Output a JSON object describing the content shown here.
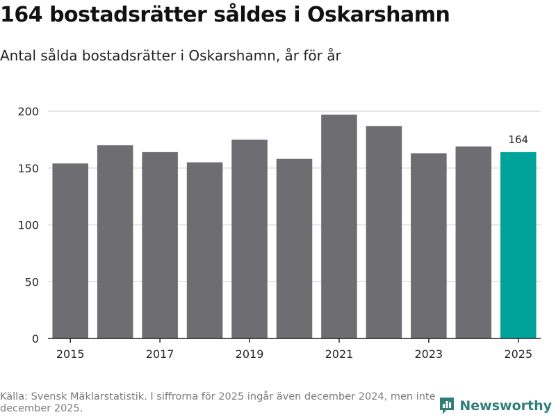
{
  "header": {
    "title": "164 bostadsrätter såldes i Oskarshamn",
    "subtitle": "Antal sålda bostadsrätter i Oskarshamn, år för år"
  },
  "footer": {
    "source_note": "Källa: Svensk Mäklarstatistik. I siffrorna för 2025 ingår även december 2024, men inte december 2025.",
    "brand": "Newsworthy"
  },
  "colors": {
    "bar": "#6e6d72",
    "highlight": "#00a39a",
    "grid": "#dddddd",
    "axis": "#222222",
    "brand": "#2f7f78"
  },
  "chart_data": {
    "type": "bar",
    "title": "164 bostadsrätter såldes i Oskarshamn",
    "subtitle": "Antal sålda bostadsrätter i Oskarshamn, år för år",
    "xlabel": "",
    "ylabel": "",
    "categories": [
      "2015",
      "2016",
      "2017",
      "2018",
      "2019",
      "2020",
      "2021",
      "2022",
      "2023",
      "2024",
      "2025"
    ],
    "values": [
      154,
      170,
      164,
      155,
      175,
      158,
      197,
      187,
      163,
      169,
      164
    ],
    "highlight_category": "2025",
    "highlight_label": "164",
    "x_tick_labels": [
      "2015",
      "2017",
      "2019",
      "2021",
      "2023",
      "2025"
    ],
    "y_ticks": [
      0,
      50,
      100,
      150,
      200
    ],
    "ylim": [
      0,
      210
    ],
    "grid": true
  }
}
